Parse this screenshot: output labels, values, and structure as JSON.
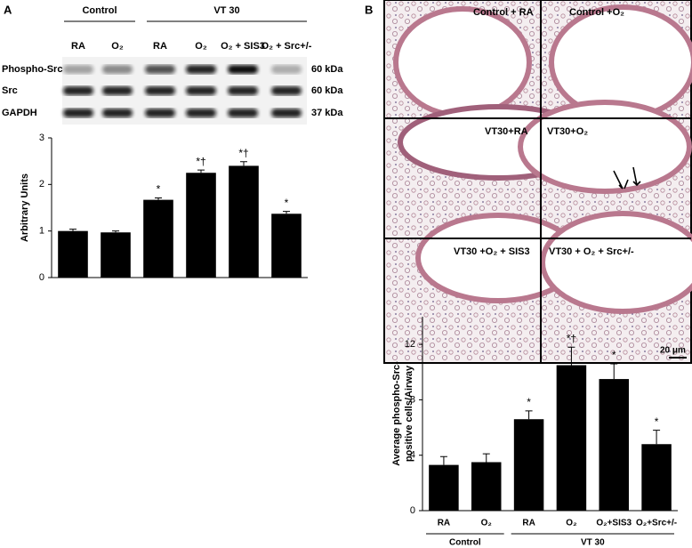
{
  "panel_letters": [
    "A",
    "B"
  ],
  "blot": {
    "groups": [
      "Control",
      "VT 30"
    ],
    "lanes": [
      "RA",
      "O₂",
      "RA",
      "O₂",
      "O₂ + SIS3",
      "O₂ + Src+/-"
    ],
    "rows": [
      "Phospho-Src",
      "Src",
      "GAPDH"
    ],
    "sizes": [
      "60 kDa",
      "60 kDa",
      "37 kDa"
    ]
  },
  "histology": {
    "labels": [
      "Control + RA",
      "Control +O₂",
      "VT30+RA",
      "VT30+O₂",
      "VT30 +O₂ + SIS3",
      "VT30 + O₂ + Src+/-"
    ],
    "scale": "20 μm"
  },
  "chart_data": [
    {
      "type": "bar",
      "ylabel": [
        "Arbitrary Units"
      ],
      "ylim": [
        0,
        3
      ],
      "yticks": [
        0,
        1,
        2,
        3
      ],
      "color": "#000000",
      "categories": [
        null,
        null,
        null,
        null,
        null,
        null
      ],
      "values": [
        1.0,
        0.97,
        1.67,
        2.25,
        2.4,
        1.37
      ],
      "errors": [
        0.04,
        0.03,
        0.04,
        0.06,
        0.09,
        0.05
      ],
      "annotations": [
        null,
        null,
        "*",
        "*†",
        "*†",
        "*"
      ]
    },
    {
      "type": "bar",
      "ylabel": [
        "Average phospho-Src-",
        "positive cells/Airway"
      ],
      "ylim": [
        0,
        14
      ],
      "yticks": [
        0,
        4,
        8,
        12
      ],
      "color": "#000000",
      "categories": [
        "RA",
        "O₂",
        "RA",
        "O₂",
        "O₂+SIS3",
        "O₂+Src+/-"
      ],
      "groups": [
        "Control",
        "VT 30"
      ],
      "values": [
        3.3,
        3.5,
        6.6,
        10.5,
        9.5,
        4.8
      ],
      "errors": [
        0.6,
        0.6,
        0.6,
        1.3,
        1.1,
        1.0
      ],
      "annotations": [
        null,
        null,
        "*",
        "*†",
        "*",
        "*"
      ]
    }
  ]
}
